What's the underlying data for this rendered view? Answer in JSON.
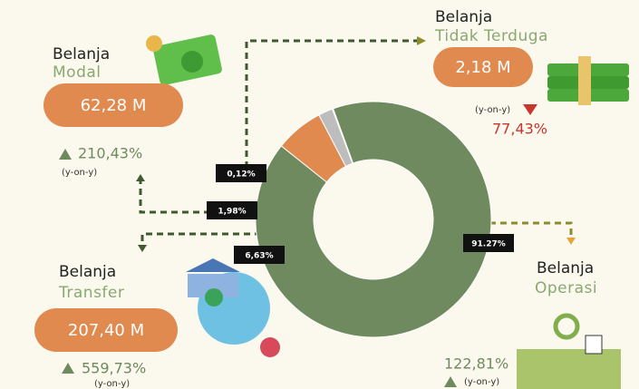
{
  "chart_data": {
    "type": "pie",
    "values": [
      91.27,
      6.63,
      1.98,
      0.12
    ],
    "value_labels": [
      "91.27%",
      "6,63%",
      "1,98%",
      "0,12%"
    ],
    "colors": [
      "#6f8a5e",
      "#e08a4f",
      "#bdbdbd",
      "#cfe9f2"
    ]
  },
  "items": [
    {
      "title": "Belanja",
      "subtitle": "Modal",
      "amount": "62,28 M",
      "growth": "210,43%",
      "direction": "up",
      "note": "(y-on-y)"
    },
    {
      "title": "Belanja",
      "subtitle": "Tidak Terduga",
      "amount": "2,18 M",
      "growth": "77,43%",
      "direction": "down",
      "note": "(y-on-y)"
    },
    {
      "title": "Belanja",
      "subtitle": "Transfer",
      "amount": "207,40 M",
      "growth": "559,73%",
      "direction": "up",
      "note": "(y-on-y)"
    },
    {
      "title": "Belanja",
      "subtitle": "Operasi",
      "growth": "122,81%",
      "direction": "up",
      "note": "(y-on-y)"
    }
  ]
}
